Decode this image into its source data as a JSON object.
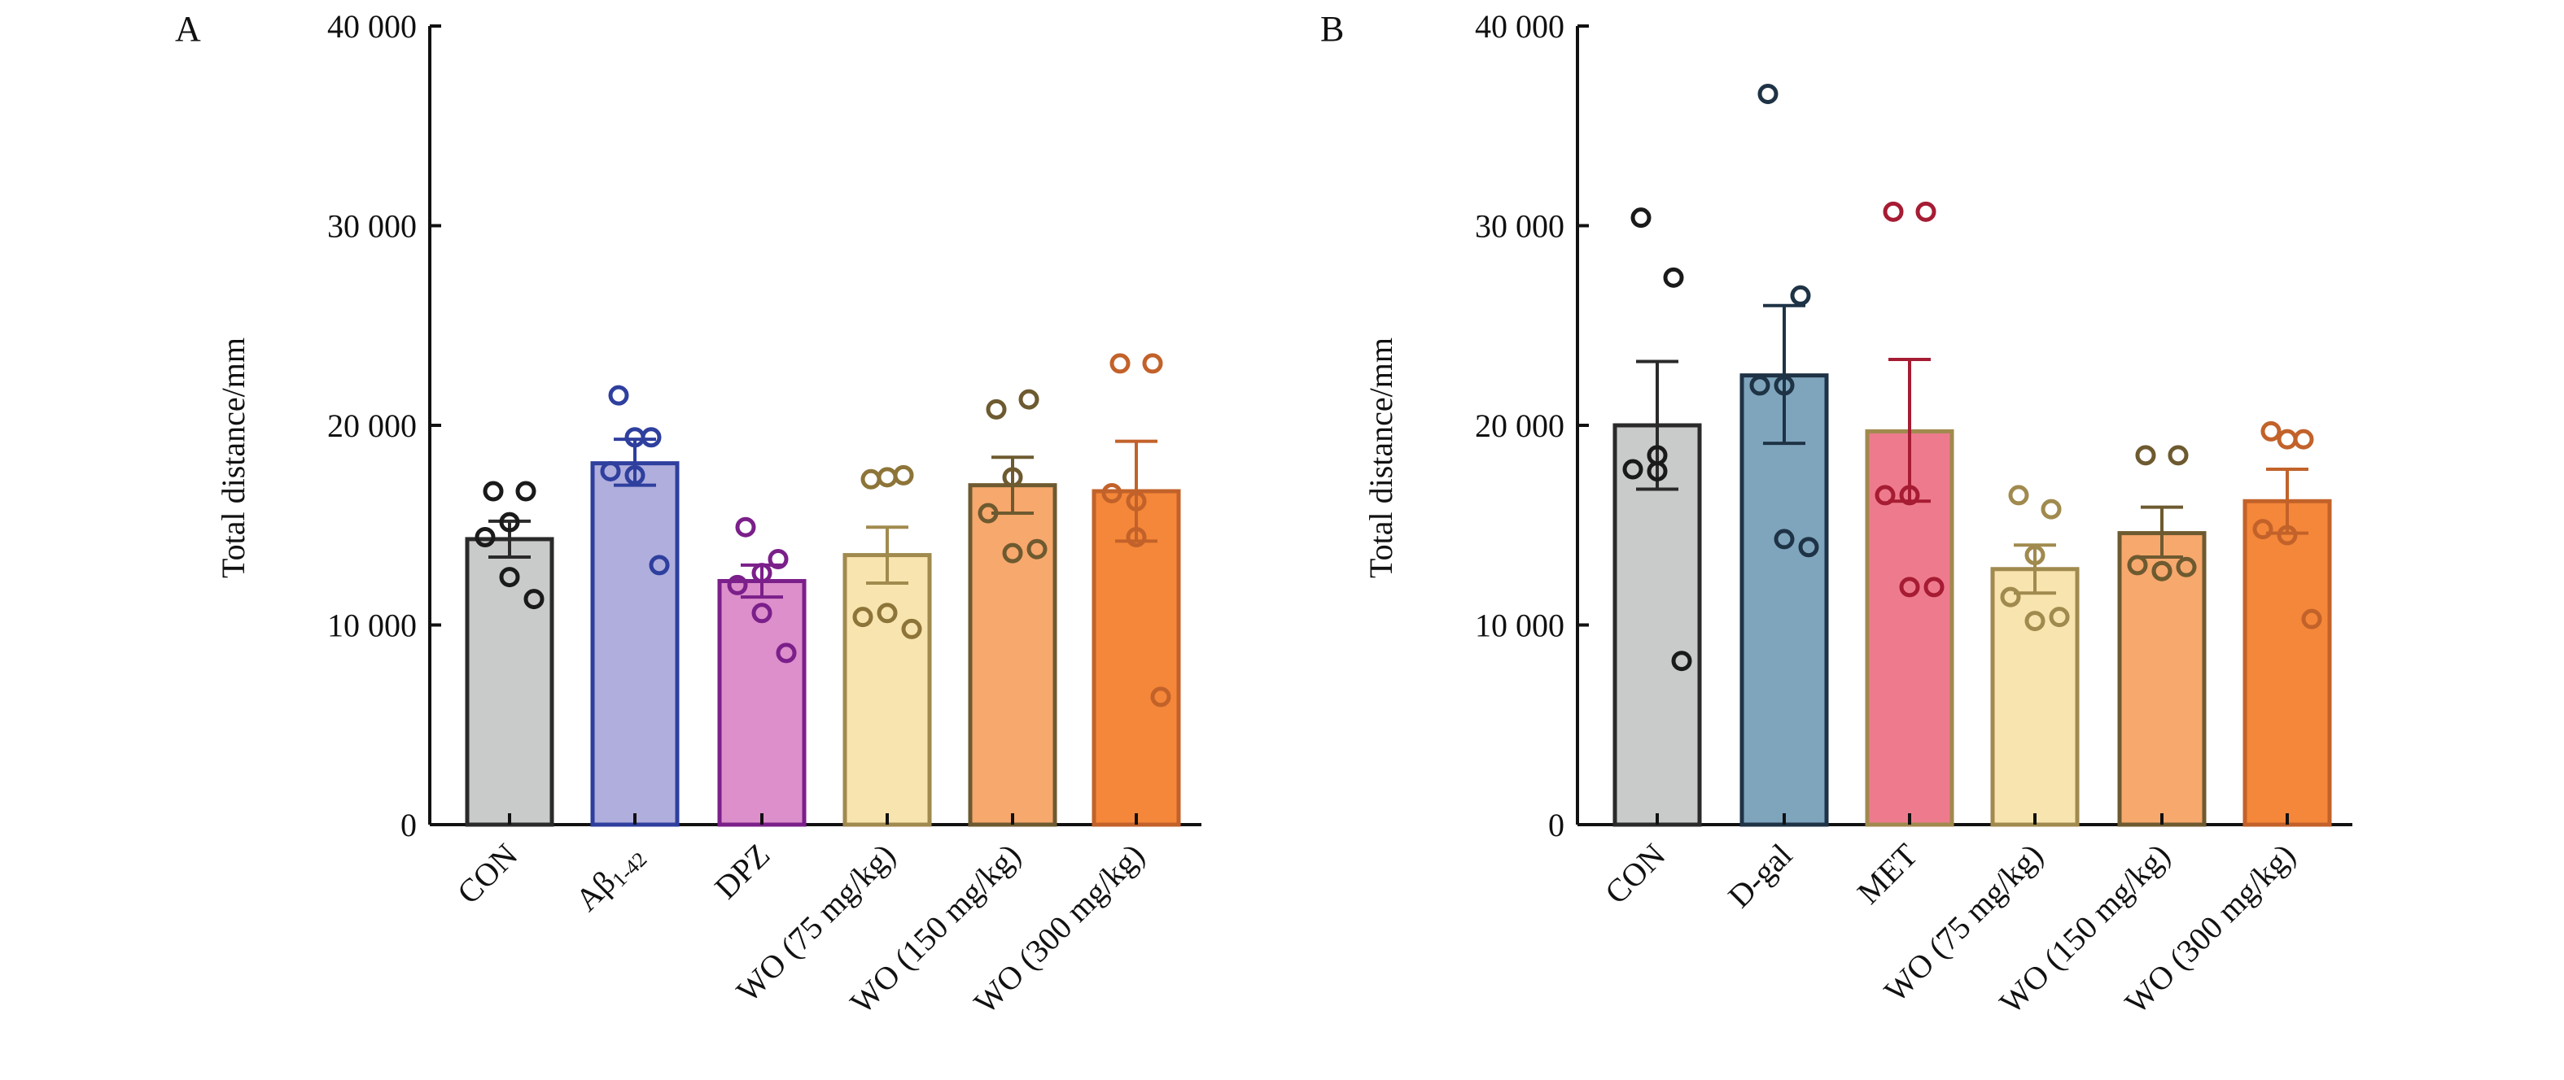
{
  "chart_data": [
    {
      "panel": "A",
      "type": "bar",
      "ylabel": "Total distance/mm",
      "ylim": [
        0,
        40000
      ],
      "yticks": [
        0,
        10000,
        20000,
        30000,
        40000
      ],
      "ytick_labels": [
        "0",
        "10 000",
        "20 000",
        "30 000",
        "40 000"
      ],
      "grid": false,
      "categories": [
        {
          "label": "CON",
          "sub": ""
        },
        {
          "label": "Aβ",
          "sub": "1-42"
        },
        {
          "label": "DPZ",
          "sub": ""
        },
        {
          "label": "WO (75 mg/kg)",
          "sub": ""
        },
        {
          "label": "WO (150 mg/kg)",
          "sub": ""
        },
        {
          "label": "WO (300 mg/kg)",
          "sub": ""
        }
      ],
      "means": [
        14300,
        18100,
        12200,
        13500,
        17000,
        16700
      ],
      "sem_low": [
        13400,
        17000,
        11400,
        12100,
        15600,
        14200
      ],
      "sem_high": [
        15200,
        19300,
        13000,
        14900,
        18400,
        19200
      ],
      "points": [
        [
          16700,
          16700,
          15150,
          14400,
          12400,
          11300
        ],
        [
          21500,
          19400,
          19400,
          17700,
          17500,
          13000
        ],
        [
          14900,
          13300,
          12600,
          12000,
          10600,
          8600
        ],
        [
          17300,
          17500,
          17400,
          10400,
          10600,
          9800
        ],
        [
          20800,
          21300,
          17400,
          15600,
          13600,
          13800
        ],
        [
          23100,
          23100,
          16200,
          16600,
          14400,
          6400
        ]
      ],
      "fill_colors": [
        "#c9caca",
        "#b0aedd",
        "#dc8fcb",
        "#f8e4ae",
        "#f7a86d",
        "#f5873a"
      ],
      "stroke_colors": [
        "#2a2a2a",
        "#2e3f9e",
        "#7b1f8a",
        "#a08a4e",
        "#6e5a30",
        "#c2622a"
      ],
      "point_colors": [
        "#1a1a1a",
        "#2e3f9e",
        "#7b1f8a",
        "#8d7438",
        "#6e5a30",
        "#c2622a"
      ]
    },
    {
      "panel": "B",
      "type": "bar",
      "ylabel": "Total distance/mm",
      "ylim": [
        0,
        40000
      ],
      "yticks": [
        0,
        10000,
        20000,
        30000,
        40000
      ],
      "ytick_labels": [
        "0",
        "10 000",
        "20 000",
        "30 000",
        "40 000"
      ],
      "grid": false,
      "categories": [
        {
          "label": "CON",
          "sub": ""
        },
        {
          "label": "D-gal",
          "sub": ""
        },
        {
          "label": "MET",
          "sub": ""
        },
        {
          "label": "WO (75 mg/kg)",
          "sub": ""
        },
        {
          "label": "WO (150 mg/kg)",
          "sub": ""
        },
        {
          "label": "WO (300 mg/kg)",
          "sub": ""
        }
      ],
      "means": [
        20000,
        22500,
        19700,
        12800,
        14600,
        16200
      ],
      "sem_low": [
        16800,
        19100,
        16200,
        11600,
        13400,
        14600
      ],
      "sem_high": [
        23200,
        26000,
        23300,
        14000,
        15900,
        17800
      ],
      "points": [
        [
          30400,
          27400,
          18500,
          17800,
          17700,
          8200
        ],
        [
          36600,
          26500,
          22000,
          22000,
          14300,
          13900
        ],
        [
          30700,
          30700,
          16500,
          16500,
          11900,
          11900
        ],
        [
          16500,
          15800,
          13500,
          11400,
          10200,
          10400
        ],
        [
          18500,
          18500,
          12700,
          13000,
          12700,
          12900
        ],
        [
          19700,
          19300,
          19300,
          14800,
          14500,
          10300
        ]
      ],
      "fill_colors": [
        "#c9caca",
        "#7fa5bd",
        "#ee7b8d",
        "#f8e4ae",
        "#f7a86d",
        "#f5873a"
      ],
      "stroke_colors": [
        "#2a2a2a",
        "#1e3345",
        "#a08a4e",
        "#a08a4e",
        "#6e5a30",
        "#c2622a"
      ],
      "point_colors": [
        "#1a1a1a",
        "#1e3345",
        "#a61c33",
        "#a08a4e",
        "#6e5a30",
        "#c2622a"
      ]
    }
  ]
}
